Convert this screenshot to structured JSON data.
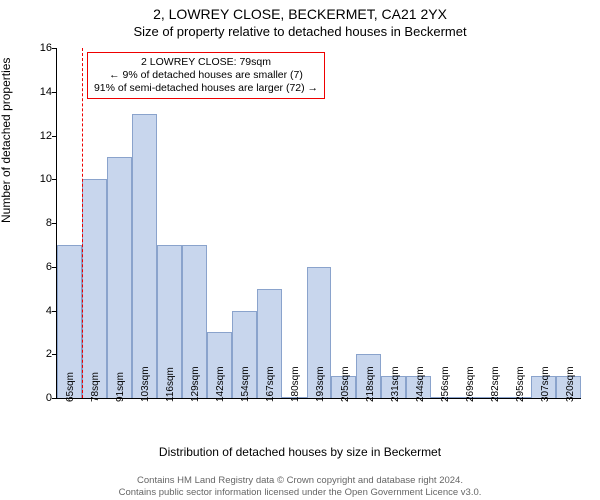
{
  "titles": {
    "main": "2, LOWREY CLOSE, BECKERMET, CA21 2YX",
    "sub": "Size of property relative to detached houses in Beckermet"
  },
  "chart": {
    "type": "histogram",
    "ylabel": "Number of detached properties",
    "xlabel": "Distribution of detached houses by size in Beckermet",
    "ylim": [
      0,
      16
    ],
    "ytick_step": 2,
    "bar_color": "#c8d6ed",
    "bar_border_color": "#8aa3cc",
    "background_color": "#ffffff",
    "marker_color": "#ee0000",
    "annotation_border_color": "#ee0000",
    "axis_color": "#000000",
    "x_categories": [
      "65sqm",
      "78sqm",
      "91sqm",
      "103sqm",
      "116sqm",
      "129sqm",
      "142sqm",
      "154sqm",
      "167sqm",
      "180sqm",
      "193sqm",
      "205sqm",
      "218sqm",
      "231sqm",
      "244sqm",
      "256sqm",
      "269sqm",
      "282sqm",
      "295sqm",
      "307sqm",
      "320sqm"
    ],
    "values": [
      7,
      10,
      11,
      13,
      7,
      7,
      3,
      4,
      5,
      0,
      6,
      1,
      2,
      1,
      1,
      0,
      0,
      0,
      0,
      1,
      1
    ],
    "marker_bin_index": 1,
    "title_fontsize": 14,
    "subtitle_fontsize": 13,
    "label_fontsize": 12,
    "tick_fontsize": 11
  },
  "annotation": {
    "line1": "2 LOWREY CLOSE: 79sqm",
    "line2": "← 9% of detached houses are smaller (7)",
    "line3": "91% of semi-detached houses are larger (72) →"
  },
  "footer": {
    "line1": "Contains HM Land Registry data © Crown copyright and database right 2024.",
    "line2": "Contains public sector information licensed under the Open Government Licence v3.0.",
    "color": "#666666"
  }
}
